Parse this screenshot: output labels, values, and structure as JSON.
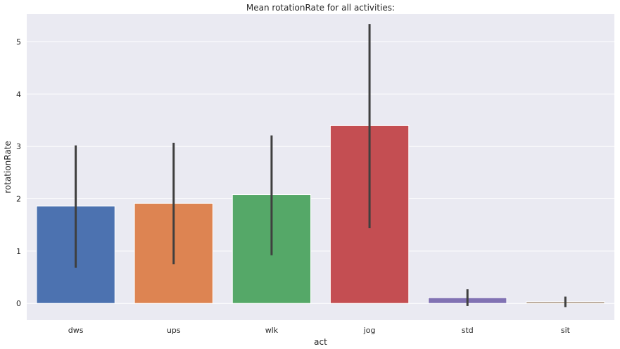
{
  "chart_data": {
    "type": "bar",
    "title": "Mean rotationRate for all activities:",
    "xlabel": "act",
    "ylabel": "rotationRate",
    "categories": [
      "dws",
      "ups",
      "wlk",
      "jog",
      "std",
      "sit"
    ],
    "values": [
      1.86,
      1.91,
      2.08,
      3.4,
      0.11,
      0.03
    ],
    "error_low": [
      0.68,
      0.75,
      0.92,
      1.44,
      -0.05,
      -0.07
    ],
    "error_high": [
      3.02,
      3.07,
      3.21,
      5.34,
      0.27,
      0.13
    ],
    "colors": [
      "#4c72b0",
      "#dd8452",
      "#55a868",
      "#c44e52",
      "#8172b3",
      "#937860"
    ],
    "ylim": [
      -0.32,
      5.53
    ],
    "yticks": [
      0,
      1,
      2,
      3,
      4,
      5
    ],
    "grid": true,
    "background": "#eaeaf2",
    "errorbar_color": "#3f3f3f"
  }
}
